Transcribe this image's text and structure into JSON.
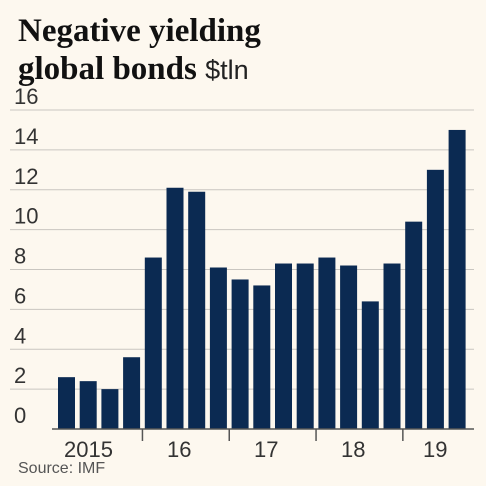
{
  "header": {
    "title": "Negative yielding",
    "title_line2": "global bonds",
    "unit": "$tln"
  },
  "source": "Source: IMF",
  "colors": {
    "bar": "#0b2a52",
    "grid": "#c9c6c0",
    "axis": "#555555",
    "background": "#fdf8ef"
  },
  "chart_data": {
    "type": "bar",
    "title": "Negative yielding global bonds",
    "ylabel": "$tln",
    "xlabel": "",
    "ylim": [
      0,
      16
    ],
    "yticks": [
      0,
      2,
      4,
      6,
      8,
      10,
      12,
      14,
      16
    ],
    "grid": true,
    "x_tick_labels": [
      "2015",
      "16",
      "17",
      "18",
      "19"
    ],
    "values": [
      2.6,
      2.4,
      2.0,
      3.6,
      8.6,
      12.1,
      11.9,
      8.1,
      7.5,
      7.2,
      8.3,
      8.3,
      8.6,
      8.2,
      6.4,
      8.3,
      10.4,
      13.0,
      15.0
    ]
  }
}
